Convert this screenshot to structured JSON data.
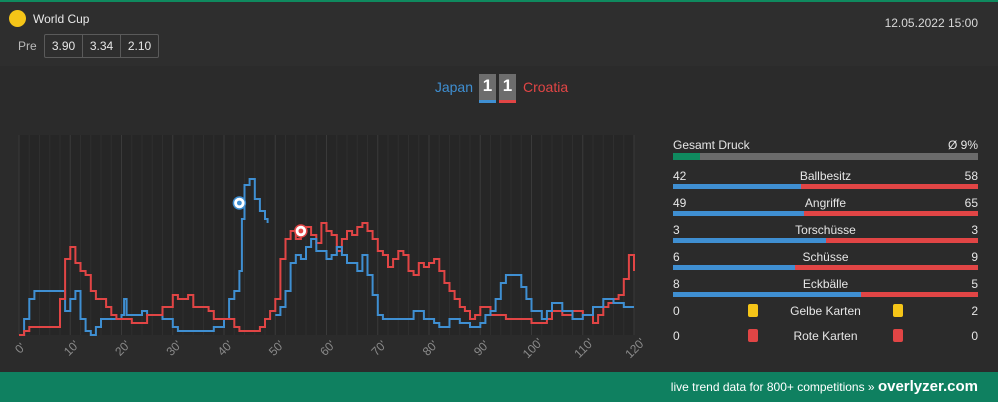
{
  "competition": {
    "name": "World Cup",
    "icon": "world-cup-icon",
    "icon_color": "#f5c518"
  },
  "datetime": "12.05.2022 15:00",
  "odds": {
    "label": "Pre",
    "values": [
      "3.90",
      "3.34",
      "2.10"
    ]
  },
  "match": {
    "home": "Japan",
    "away": "Croatia",
    "home_score": "1",
    "away_score": "1",
    "home_color": "#3f8fd2",
    "away_color": "#e14545"
  },
  "chart_data": {
    "type": "line",
    "xlabel": "",
    "ylabel": "",
    "x_ticks": [
      "0'",
      "10'",
      "20'",
      "30'",
      "40'",
      "50'",
      "60'",
      "70'",
      "80'",
      "90'",
      "100'",
      "110'",
      "120'"
    ],
    "xlim": [
      0,
      120
    ],
    "ylim": [
      0,
      100
    ],
    "series": [
      {
        "name": "Japan",
        "color": "#3f8fd2",
        "points": [
          [
            0,
            0
          ],
          [
            1,
            8
          ],
          [
            2,
            18
          ],
          [
            3,
            22
          ],
          [
            8,
            22
          ],
          [
            9,
            12
          ],
          [
            10,
            18
          ],
          [
            11,
            22
          ],
          [
            12,
            8
          ],
          [
            13,
            2
          ],
          [
            14,
            0
          ],
          [
            15,
            4
          ],
          [
            16,
            8
          ],
          [
            20,
            10
          ],
          [
            20.5,
            18
          ],
          [
            21,
            10
          ],
          [
            24,
            12
          ],
          [
            25,
            10
          ],
          [
            28,
            8
          ],
          [
            30,
            4
          ],
          [
            31,
            2
          ],
          [
            38,
            4
          ],
          [
            40,
            8
          ],
          [
            41,
            18
          ],
          [
            42,
            22
          ],
          [
            43,
            32
          ],
          [
            43.5,
            58
          ],
          [
            44,
            75
          ],
          [
            45,
            78
          ],
          [
            46,
            68
          ],
          [
            47,
            62
          ],
          [
            48,
            58
          ],
          [
            48.5,
            56
          ]
        ]
      },
      {
        "name": "Croatia",
        "color": "#e14545",
        "points": [
          [
            0,
            0
          ],
          [
            1,
            2
          ],
          [
            2,
            4
          ],
          [
            7,
            4
          ],
          [
            8,
            18
          ],
          [
            9,
            38
          ],
          [
            10,
            44
          ],
          [
            11,
            36
          ],
          [
            12,
            32
          ],
          [
            13,
            30
          ],
          [
            14,
            22
          ],
          [
            15,
            18
          ],
          [
            17,
            14
          ],
          [
            18,
            10
          ],
          [
            19,
            8
          ],
          [
            20,
            8
          ],
          [
            22,
            6
          ],
          [
            24,
            6
          ],
          [
            25,
            10
          ],
          [
            28,
            14
          ],
          [
            30,
            20
          ],
          [
            31,
            18
          ],
          [
            33,
            20
          ],
          [
            34,
            14
          ],
          [
            37,
            12
          ],
          [
            38,
            8
          ],
          [
            40,
            8
          ],
          [
            42,
            4
          ],
          [
            43,
            2
          ],
          [
            47,
            4
          ],
          [
            48,
            8
          ],
          [
            49,
            12
          ],
          [
            50,
            18
          ],
          [
            51,
            38
          ],
          [
            52,
            48
          ],
          [
            53,
            52
          ],
          [
            54,
            48
          ],
          [
            55,
            52
          ],
          [
            56,
            54
          ],
          [
            57,
            50
          ],
          [
            58,
            46
          ],
          [
            59,
            56
          ],
          [
            60,
            52
          ],
          [
            61,
            50
          ],
          [
            62,
            42
          ],
          [
            63,
            48
          ],
          [
            64,
            52
          ],
          [
            65,
            50
          ],
          [
            66,
            54
          ],
          [
            67,
            56
          ],
          [
            68,
            52
          ],
          [
            69,
            48
          ],
          [
            70,
            42
          ],
          [
            71,
            40
          ],
          [
            72,
            34
          ],
          [
            73,
            38
          ],
          [
            74,
            42
          ],
          [
            75,
            40
          ],
          [
            76,
            32
          ],
          [
            77,
            30
          ],
          [
            78,
            36
          ],
          [
            79,
            34
          ],
          [
            80,
            36
          ],
          [
            81,
            38
          ],
          [
            82,
            32
          ],
          [
            83,
            26
          ],
          [
            84,
            22
          ],
          [
            85,
            18
          ],
          [
            86,
            14
          ],
          [
            87,
            12
          ],
          [
            88,
            8
          ],
          [
            89,
            10
          ],
          [
            90,
            14
          ],
          [
            92,
            10
          ],
          [
            95,
            8
          ],
          [
            100,
            6
          ],
          [
            103,
            8
          ],
          [
            104,
            12
          ],
          [
            106,
            10
          ],
          [
            108,
            12
          ],
          [
            110,
            10
          ],
          [
            112,
            6
          ],
          [
            113,
            10
          ],
          [
            114,
            14
          ],
          [
            115,
            16
          ],
          [
            116,
            18
          ],
          [
            117,
            20
          ],
          [
            118,
            28
          ],
          [
            119,
            40
          ],
          [
            120,
            32
          ]
        ]
      },
      {
        "name": "Japan",
        "color": "#3f8fd2",
        "points": [
          [
            50,
            10
          ],
          [
            51,
            14
          ],
          [
            52,
            22
          ],
          [
            53,
            36
          ],
          [
            54,
            40
          ],
          [
            55,
            38
          ],
          [
            56,
            44
          ],
          [
            57,
            48
          ],
          [
            58,
            42
          ],
          [
            60,
            38
          ],
          [
            61,
            40
          ],
          [
            62,
            44
          ],
          [
            63,
            40
          ],
          [
            64,
            36
          ],
          [
            66,
            32
          ],
          [
            67,
            40
          ],
          [
            68,
            30
          ],
          [
            69,
            20
          ],
          [
            70,
            10
          ],
          [
            71,
            8
          ],
          [
            75,
            8
          ],
          [
            77,
            12
          ],
          [
            79,
            8
          ],
          [
            81,
            6
          ],
          [
            82,
            4
          ],
          [
            84,
            8
          ],
          [
            86,
            6
          ],
          [
            88,
            4
          ],
          [
            90,
            6
          ],
          [
            91,
            10
          ],
          [
            92,
            12
          ],
          [
            93,
            18
          ],
          [
            94,
            26
          ],
          [
            95,
            30
          ],
          [
            97,
            30
          ],
          [
            98,
            24
          ],
          [
            99,
            18
          ],
          [
            100,
            12
          ],
          [
            102,
            8
          ],
          [
            103,
            12
          ],
          [
            104,
            16
          ],
          [
            106,
            12
          ],
          [
            108,
            8
          ],
          [
            110,
            10
          ],
          [
            112,
            14
          ],
          [
            114,
            18
          ],
          [
            116,
            16
          ],
          [
            118,
            14
          ],
          [
            120,
            14
          ]
        ]
      }
    ],
    "goals": [
      {
        "team": "Japan",
        "minute": 43,
        "level": 66
      },
      {
        "team": "Croatia",
        "minute": 55,
        "level": 52
      }
    ]
  },
  "stats": {
    "pressure": {
      "label": "Gesamt Druck",
      "value": "Ø 9%",
      "fraction": 0.09,
      "color": "#0f8a5f"
    },
    "rows": [
      {
        "label": "Ballbesitz",
        "home": "42",
        "away": "58"
      },
      {
        "label": "Angriffe",
        "home": "49",
        "away": "65"
      },
      {
        "label": "Torschüsse",
        "home": "3",
        "away": "3"
      },
      {
        "label": "Schüsse",
        "home": "6",
        "away": "9"
      },
      {
        "label": "Eckbälle",
        "home": "8",
        "away": "5"
      }
    ],
    "yellow": {
      "label": "Gelbe Karten",
      "home": "0",
      "away": "2",
      "color": "#f5c518"
    },
    "red": {
      "label": "Rote Karten",
      "home": "0",
      "away": "0",
      "color": "#e14545"
    }
  },
  "footer": {
    "text": "live trend data for 800+ competitions »",
    "brand": "overlyzer.com"
  }
}
